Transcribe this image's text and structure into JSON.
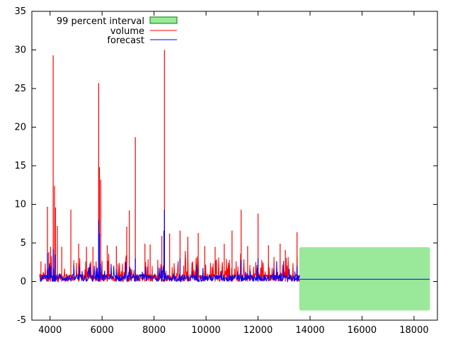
{
  "chart_data": {
    "type": "line",
    "title": "",
    "xlabel": "",
    "ylabel": "",
    "xlim": [
      3300,
      18900
    ],
    "ylim": [
      -5,
      35
    ],
    "xticks": [
      4000,
      6000,
      8000,
      10000,
      12000,
      14000,
      16000,
      18000
    ],
    "yticks": [
      -5,
      0,
      5,
      10,
      15,
      20,
      25,
      30,
      35
    ],
    "grid": false,
    "legend_position": "top-left",
    "legend": [
      {
        "label": "99 percent interval",
        "kind": "band"
      },
      {
        "label": "volume",
        "kind": "line"
      },
      {
        "label": "forecast",
        "kind": "line"
      }
    ],
    "colors": {
      "volume": "#ff0000",
      "forecast": "#0000ff",
      "interval_fill": "#9ae99a",
      "interval_edge": "#008000"
    },
    "series": [
      {
        "name": "volume",
        "x_range": [
          3600,
          13600
        ],
        "baseline_range": [
          0,
          1
        ],
        "spikes": [
          {
            "x": 3650,
            "y": 2.6
          },
          {
            "x": 3900,
            "y": 9.7
          },
          {
            "x": 3950,
            "y": 3.8
          },
          {
            "x": 4020,
            "y": 4.5
          },
          {
            "x": 4120,
            "y": 29.3
          },
          {
            "x": 4170,
            "y": 12.4
          },
          {
            "x": 4210,
            "y": 9.6
          },
          {
            "x": 4280,
            "y": 7.2
          },
          {
            "x": 4450,
            "y": 4.5
          },
          {
            "x": 4800,
            "y": 9.3
          },
          {
            "x": 5100,
            "y": 4.9
          },
          {
            "x": 5400,
            "y": 4.5
          },
          {
            "x": 5650,
            "y": 4.5
          },
          {
            "x": 5870,
            "y": 25.7
          },
          {
            "x": 5900,
            "y": 14.8
          },
          {
            "x": 5950,
            "y": 13.2
          },
          {
            "x": 6200,
            "y": 4.7
          },
          {
            "x": 6550,
            "y": 4.6
          },
          {
            "x": 6950,
            "y": 7.1
          },
          {
            "x": 7050,
            "y": 9.2
          },
          {
            "x": 7280,
            "y": 18.7
          },
          {
            "x": 7650,
            "y": 4.9
          },
          {
            "x": 7850,
            "y": 4.8
          },
          {
            "x": 8300,
            "y": 5.9
          },
          {
            "x": 8400,
            "y": 30.0
          },
          {
            "x": 8600,
            "y": 6.2
          },
          {
            "x": 9000,
            "y": 6.6
          },
          {
            "x": 9300,
            "y": 5.8
          },
          {
            "x": 9700,
            "y": 6.3
          },
          {
            "x": 9950,
            "y": 4.6
          },
          {
            "x": 10350,
            "y": 4.5
          },
          {
            "x": 10700,
            "y": 4.9
          },
          {
            "x": 11000,
            "y": 6.6
          },
          {
            "x": 11350,
            "y": 9.3
          },
          {
            "x": 11600,
            "y": 4.6
          },
          {
            "x": 12000,
            "y": 8.8
          },
          {
            "x": 12400,
            "y": 4.7
          },
          {
            "x": 12850,
            "y": 4.9
          },
          {
            "x": 13050,
            "y": 4.1
          },
          {
            "x": 13500,
            "y": 6.4
          }
        ]
      },
      {
        "name": "forecast",
        "fitted_x_range": [
          3600,
          13600
        ],
        "fitted_baseline_range": [
          0,
          0.9
        ],
        "fitted_peaks": [
          {
            "x": 3900,
            "y": 3.7
          },
          {
            "x": 4120,
            "y": 4.2
          },
          {
            "x": 4200,
            "y": 3.5
          },
          {
            "x": 5870,
            "y": 8.0
          },
          {
            "x": 5900,
            "y": 6.2
          },
          {
            "x": 7280,
            "y": 3.0
          },
          {
            "x": 8400,
            "y": 9.3
          },
          {
            "x": 8380,
            "y": 6.6
          },
          {
            "x": 9000,
            "y": 3.0
          },
          {
            "x": 11350,
            "y": 2.8
          },
          {
            "x": 12000,
            "y": 3.0
          },
          {
            "x": 13500,
            "y": 2.0
          }
        ],
        "forecast_x_range": [
          13600,
          18600
        ],
        "forecast_value": 0.3
      }
    ],
    "interval": {
      "name": "99 percent interval",
      "x_range": [
        13600,
        18600
      ],
      "low": -3.7,
      "high": 4.4
    }
  }
}
